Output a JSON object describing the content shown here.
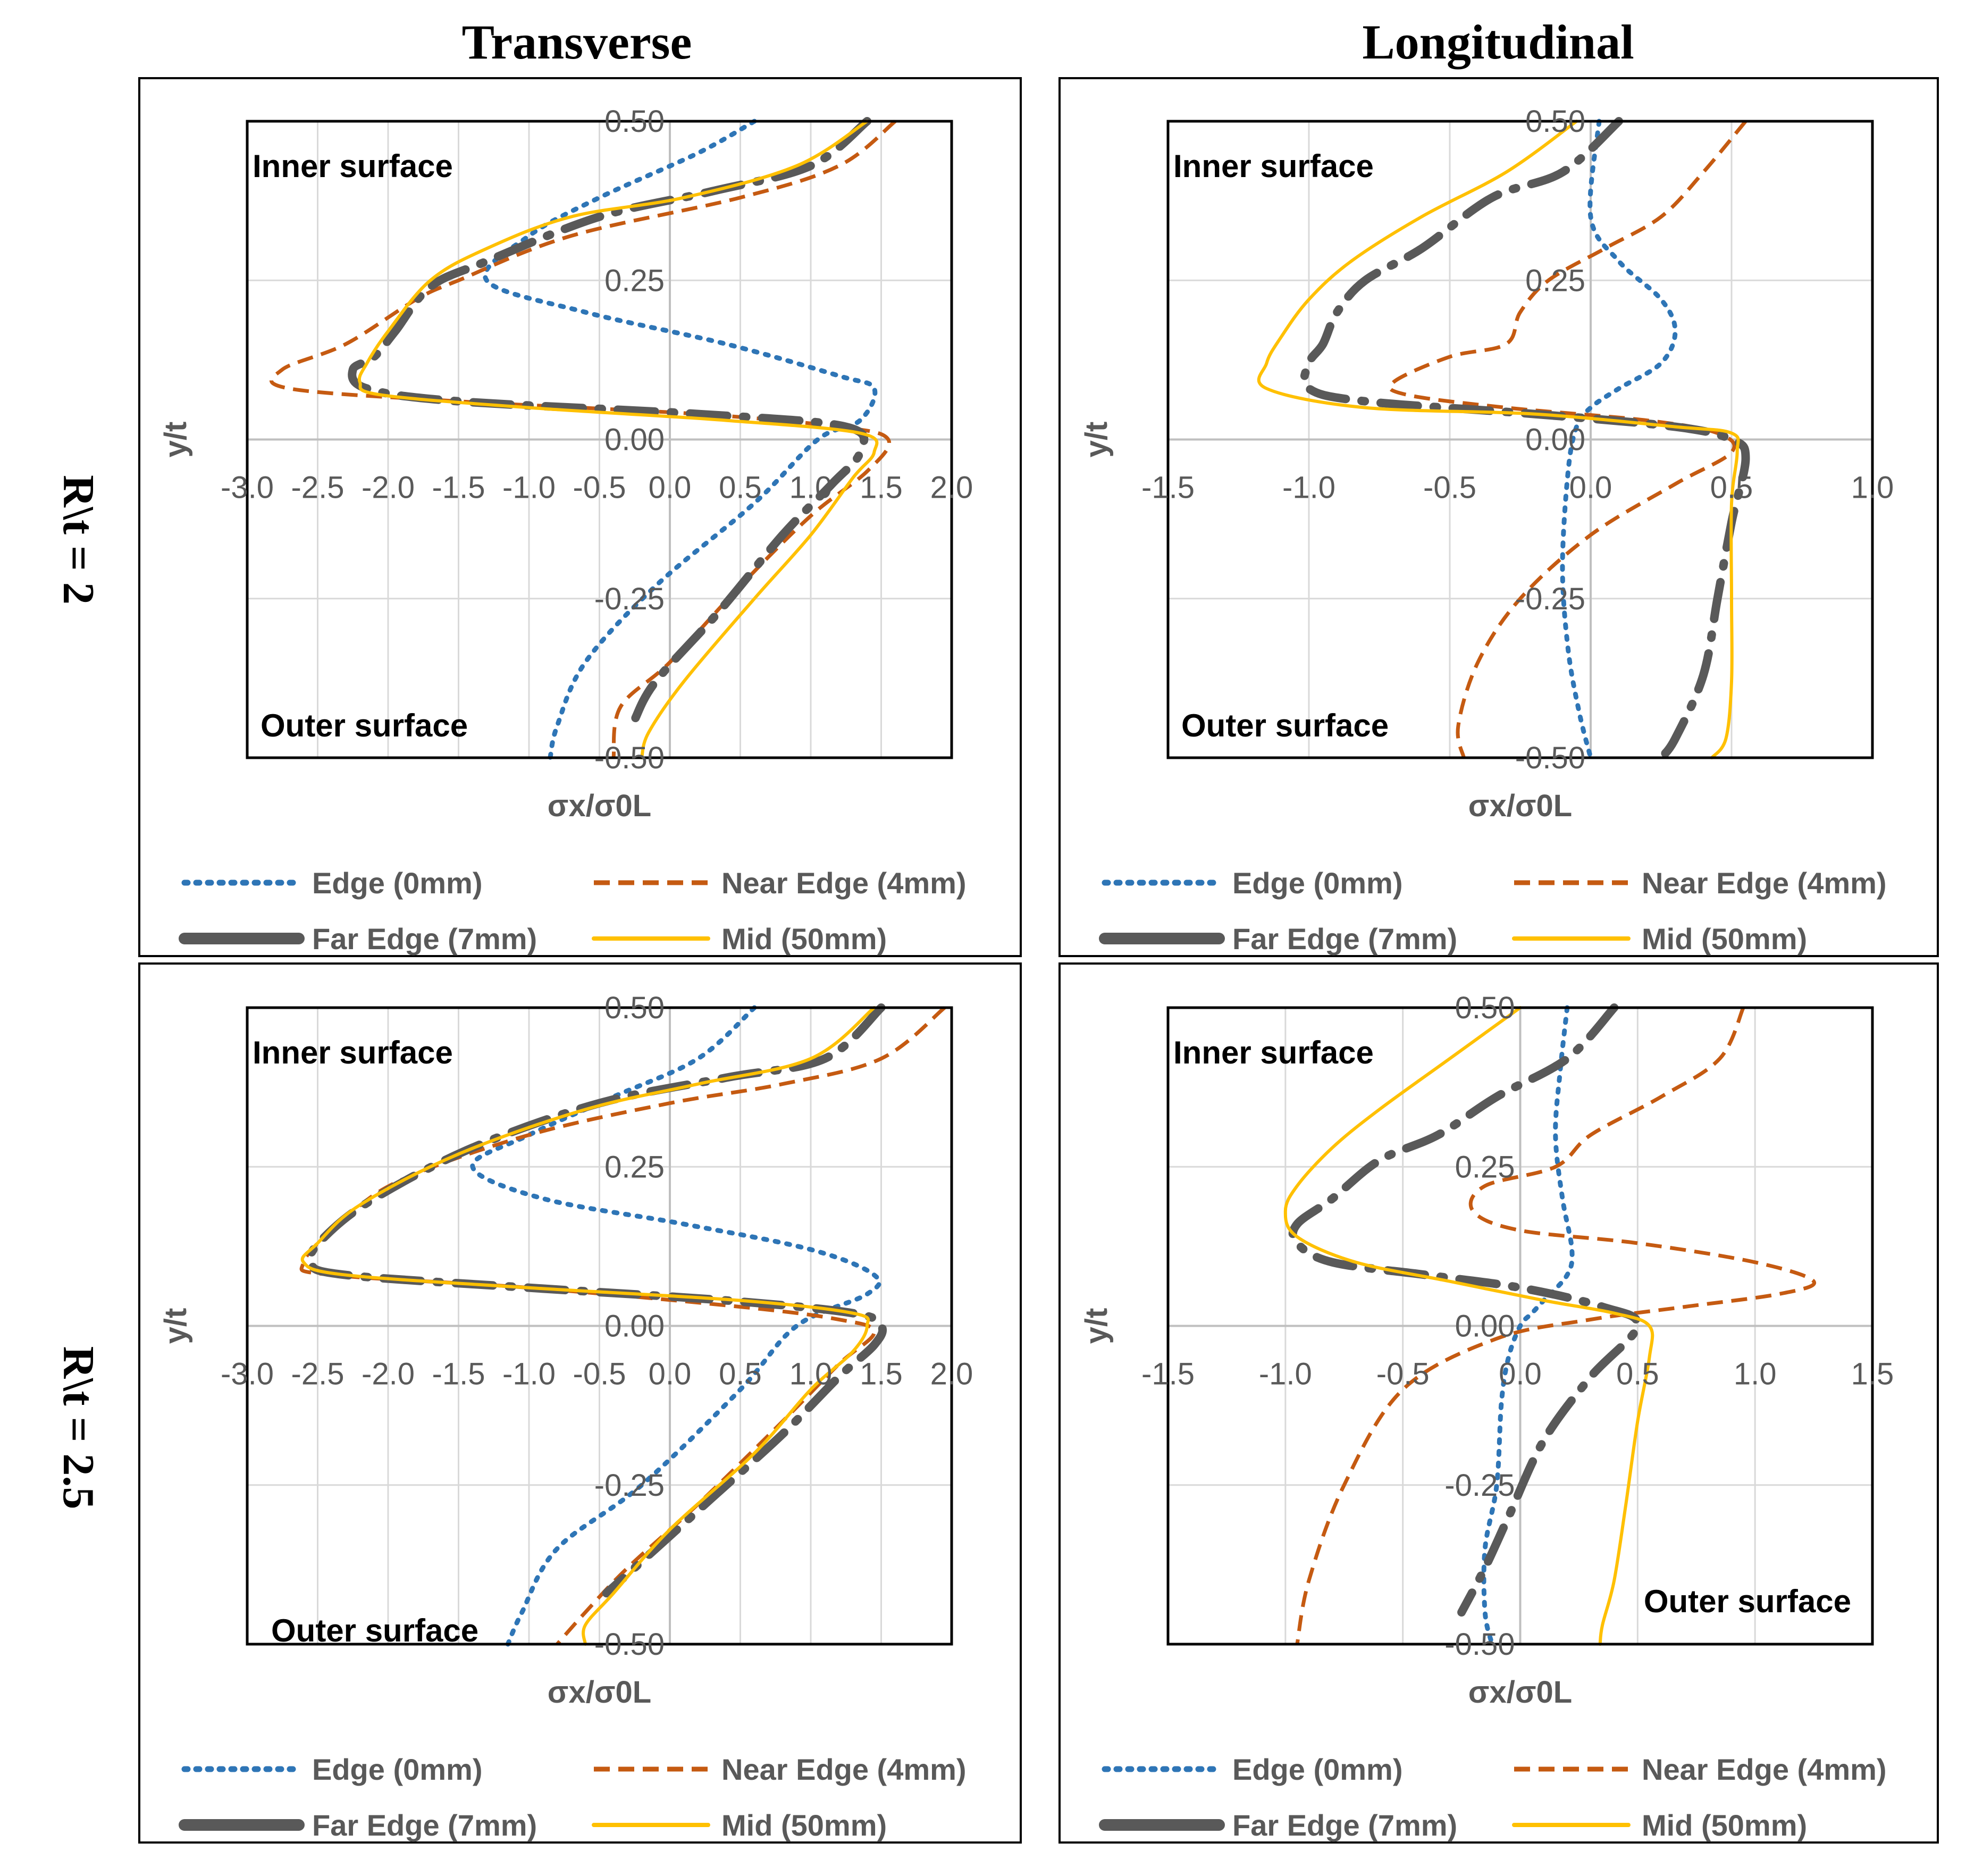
{
  "columns": [
    "Transverse",
    "Longitudinal"
  ],
  "rows": [
    "R\\t = 2",
    "R\\t = 2.5"
  ],
  "series_styles": [
    {
      "name": "Edge (0mm)",
      "color": "#2E75B6",
      "style": "dotted"
    },
    {
      "name": "Near Edge (4mm)",
      "color": "#C55A11",
      "style": "dashed"
    },
    {
      "name": "Far Edge (7mm)",
      "color": "#595959",
      "style": "long-dash-dot"
    },
    {
      "name": "Mid (50mm)",
      "color": "#FFC000",
      "style": "solid"
    }
  ],
  "chart_data": [
    {
      "type": "line",
      "panel": "Transverse, R\\t = 2",
      "xlabel": "σx/σ0L",
      "ylabel": "y/t",
      "xlim": [
        -3.0,
        2.0
      ],
      "ylim": [
        -0.5,
        0.5
      ],
      "xticks": [
        "-3.0",
        "-2.5",
        "-2.0",
        "-1.5",
        "-1.0",
        "-0.5",
        "0.0",
        "0.5",
        "1.0",
        "1.5",
        "2.0"
      ],
      "yticks": [
        "0.50",
        "0.25",
        "0.00",
        "-0.25",
        "-0.50"
      ],
      "annotations": {
        "inner": "Inner surface",
        "outer": "Outer surface"
      },
      "series": [
        {
          "name": "Edge (0mm)",
          "x": [
            0.6,
            0.2,
            -0.5,
            -1.0,
            -1.3,
            -0.6,
            0.4,
            1.2,
            1.45,
            1.35,
            1.05,
            0.6,
            -0.1,
            -0.6,
            -0.8,
            -0.85
          ],
          "y": [
            0.5,
            0.45,
            0.38,
            0.32,
            0.25,
            0.2,
            0.15,
            0.1,
            0.08,
            0.03,
            0.0,
            -0.1,
            -0.23,
            -0.35,
            -0.45,
            -0.5
          ]
        },
        {
          "name": "Near Edge (4mm)",
          "x": [
            1.6,
            1.2,
            0.5,
            -0.7,
            -1.5,
            -1.8,
            -2.3,
            -2.75,
            -2.7,
            -1.5,
            0.2,
            1.2,
            1.55,
            1.4,
            1.0,
            0.5,
            0.0,
            -0.35,
            -0.4
          ],
          "y": [
            0.5,
            0.43,
            0.38,
            0.32,
            0.25,
            0.22,
            0.15,
            0.11,
            0.08,
            0.06,
            0.04,
            0.02,
            0.0,
            -0.05,
            -0.12,
            -0.23,
            -0.35,
            -0.42,
            -0.5
          ]
        },
        {
          "name": "Far Edge (7mm)",
          "x": [
            1.4,
            1.0,
            0.3,
            -0.5,
            -1.3,
            -1.7,
            -1.95,
            -2.1,
            -2.25,
            -2.15,
            -1.5,
            0.2,
            1.25,
            1.35,
            1.15,
            0.8,
            0.35,
            -0.1,
            -0.25
          ],
          "y": [
            0.5,
            0.43,
            0.39,
            0.35,
            0.28,
            0.24,
            0.17,
            0.13,
            0.11,
            0.08,
            0.06,
            0.04,
            0.02,
            -0.02,
            -0.07,
            -0.15,
            -0.27,
            -0.38,
            -0.44
          ]
        },
        {
          "name": "Mid (50mm)",
          "x": [
            1.4,
            0.9,
            0.1,
            -0.7,
            -1.3,
            -1.7,
            -2.0,
            -2.15,
            -2.2,
            -2.05,
            -1.0,
            0.4,
            1.35,
            1.45,
            1.3,
            1.0,
            0.6,
            0.1,
            -0.15,
            -0.2
          ],
          "y": [
            0.5,
            0.43,
            0.38,
            0.35,
            0.3,
            0.25,
            0.17,
            0.12,
            0.09,
            0.07,
            0.05,
            0.03,
            0.01,
            -0.02,
            -0.06,
            -0.15,
            -0.25,
            -0.38,
            -0.46,
            -0.5
          ]
        }
      ]
    },
    {
      "type": "line",
      "panel": "Longitudinal, R\\t = 2",
      "xlabel": "σx/σ0L",
      "ylabel": "y/t",
      "xlim": [
        -1.5,
        1.0
      ],
      "ylim": [
        -0.5,
        0.5
      ],
      "xticks": [
        "-1.5",
        "-1.0",
        "-0.5",
        "0.0",
        "0.5",
        "1.0"
      ],
      "yticks": [
        "0.50",
        "0.25",
        "0.00",
        "-0.25",
        "-0.50"
      ],
      "annotations": {
        "inner": "Inner surface",
        "outer": "Outer surface"
      },
      "series": [
        {
          "name": "Edge (0mm)",
          "x": [
            0.03,
            0.0,
            0.1,
            0.25,
            0.3,
            0.25,
            0.1,
            0.0,
            -0.05,
            -0.08,
            -0.1,
            -0.08,
            -0.04,
            0.0
          ],
          "y": [
            0.5,
            0.35,
            0.28,
            0.22,
            0.17,
            0.12,
            0.08,
            0.05,
            0.02,
            -0.05,
            -0.2,
            -0.33,
            -0.43,
            -0.5
          ]
        },
        {
          "name": "Near Edge (4mm)",
          "x": [
            0.55,
            0.4,
            0.25,
            0.05,
            -0.15,
            -0.25,
            -0.3,
            -0.5,
            -0.7,
            -0.65,
            -0.3,
            0.2,
            0.45,
            0.5,
            0.3,
            0.0,
            -0.25,
            -0.4,
            -0.47,
            -0.45
          ],
          "y": [
            0.5,
            0.42,
            0.35,
            0.3,
            0.25,
            0.2,
            0.15,
            0.13,
            0.09,
            0.07,
            0.05,
            0.03,
            0.01,
            -0.02,
            -0.07,
            -0.15,
            -0.25,
            -0.35,
            -0.45,
            -0.5
          ]
        },
        {
          "name": "Far Edge (7mm)",
          "x": [
            0.1,
            -0.1,
            -0.35,
            -0.6,
            -0.8,
            -0.9,
            -0.95,
            -1.0,
            -1.0,
            -0.8,
            -0.2,
            0.3,
            0.5,
            0.55,
            0.5,
            0.45,
            0.4,
            0.3,
            0.25
          ],
          "y": [
            0.5,
            0.42,
            0.38,
            0.3,
            0.25,
            0.2,
            0.15,
            0.12,
            0.08,
            0.06,
            0.04,
            0.02,
            0.0,
            -0.03,
            -0.13,
            -0.25,
            -0.37,
            -0.47,
            -0.5
          ]
        },
        {
          "name": "Mid (50mm)",
          "x": [
            -0.05,
            -0.3,
            -0.6,
            -0.85,
            -1.0,
            -1.1,
            -1.15,
            -1.15,
            -0.8,
            -0.2,
            0.3,
            0.5,
            0.52,
            0.5,
            0.5,
            0.5,
            0.48,
            0.43
          ],
          "y": [
            0.5,
            0.42,
            0.35,
            0.28,
            0.22,
            0.16,
            0.12,
            0.08,
            0.05,
            0.04,
            0.02,
            0.01,
            -0.02,
            -0.1,
            -0.25,
            -0.38,
            -0.47,
            -0.5
          ]
        }
      ]
    },
    {
      "type": "line",
      "panel": "Transverse, R\\t = 2.5",
      "xlabel": "σx/σ0L",
      "ylabel": "y/t",
      "xlim": [
        -3.0,
        2.0
      ],
      "ylim": [
        -0.5,
        0.5
      ],
      "xticks": [
        "-3.0",
        "-2.5",
        "-2.0",
        "-1.5",
        "-1.0",
        "-0.5",
        "0.0",
        "0.5",
        "1.0",
        "1.5",
        "2.0"
      ],
      "yticks": [
        "0.50",
        "0.25",
        "0.00",
        "-0.25",
        "-0.50"
      ],
      "annotations": {
        "inner": "Inner surface",
        "outer": "Outer surface"
      },
      "series": [
        {
          "name": "Edge (0mm)",
          "x": [
            0.6,
            0.2,
            -0.4,
            -1.0,
            -1.4,
            -0.9,
            0.1,
            1.0,
            1.45,
            1.4,
            0.9,
            0.5,
            -0.2,
            -0.8,
            -1.05,
            -1.15
          ],
          "y": [
            0.5,
            0.42,
            0.36,
            0.3,
            0.25,
            0.2,
            0.16,
            0.12,
            0.08,
            0.05,
            0.0,
            -0.1,
            -0.25,
            -0.35,
            -0.45,
            -0.5
          ]
        },
        {
          "name": "Near Edge (4mm)",
          "x": [
            1.95,
            1.5,
            0.8,
            0.0,
            -1.0,
            -1.9,
            -2.3,
            -2.6,
            -2.4,
            -1.0,
            0.5,
            1.2,
            1.45,
            1.2,
            0.8,
            0.2,
            -0.3,
            -0.6,
            -0.8
          ],
          "y": [
            0.5,
            0.42,
            0.38,
            0.35,
            0.3,
            0.23,
            0.17,
            0.1,
            0.08,
            0.06,
            0.03,
            0.01,
            -0.01,
            -0.06,
            -0.15,
            -0.28,
            -0.38,
            -0.45,
            -0.5
          ]
        },
        {
          "name": "Far Edge (7mm)",
          "x": [
            1.5,
            1.1,
            0.4,
            -0.5,
            -1.4,
            -2.1,
            -2.45,
            -2.55,
            -2.3,
            -1.0,
            0.4,
            1.3,
            1.5,
            1.45,
            1.2,
            0.8,
            0.3,
            -0.2,
            -0.45
          ],
          "y": [
            0.5,
            0.42,
            0.39,
            0.35,
            0.28,
            0.2,
            0.14,
            0.1,
            0.08,
            0.06,
            0.04,
            0.02,
            0.0,
            -0.03,
            -0.08,
            -0.17,
            -0.27,
            -0.37,
            -0.42
          ]
        },
        {
          "name": "Mid (50mm)",
          "x": [
            1.45,
            1.0,
            0.2,
            -0.6,
            -1.5,
            -2.2,
            -2.5,
            -2.6,
            -2.3,
            -1.0,
            0.5,
            1.3,
            1.4,
            1.3,
            1.0,
            0.6,
            0.0,
            -0.4,
            -0.6,
            -0.6
          ],
          "y": [
            0.5,
            0.42,
            0.38,
            0.34,
            0.27,
            0.19,
            0.13,
            0.1,
            0.08,
            0.06,
            0.04,
            0.02,
            0.0,
            -0.04,
            -0.1,
            -0.2,
            -0.32,
            -0.42,
            -0.47,
            -0.5
          ]
        }
      ]
    },
    {
      "type": "line",
      "panel": "Longitudinal, R\\t = 2.5",
      "xlabel": "σx/σ0L",
      "ylabel": "y/t",
      "xlim": [
        -1.5,
        1.5
      ],
      "ylim": [
        -0.5,
        0.5
      ],
      "xticks": [
        "-1.5",
        "-1.0",
        "-0.5",
        "0.0",
        "0.5",
        "1.0",
        "1.5"
      ],
      "yticks": [
        "0.50",
        "0.25",
        "0.00",
        "-0.25",
        "-0.50"
      ],
      "annotations": {
        "inner": "Inner surface",
        "outer": "Outer surface"
      },
      "series": [
        {
          "name": "Edge (0mm)",
          "x": [
            0.2,
            0.17,
            0.15,
            0.18,
            0.22,
            0.2,
            0.1,
            0.05,
            0.0,
            -0.05,
            -0.08,
            -0.1,
            -0.15,
            -0.15,
            -0.12
          ],
          "y": [
            0.5,
            0.4,
            0.3,
            0.2,
            0.12,
            0.08,
            0.04,
            0.02,
            0.0,
            -0.05,
            -0.12,
            -0.25,
            -0.35,
            -0.45,
            -0.5
          ]
        },
        {
          "name": "Near Edge (4mm)",
          "x": [
            0.95,
            0.85,
            0.6,
            0.3,
            0.15,
            -0.15,
            -0.2,
            0.0,
            0.5,
            1.0,
            1.25,
            1.1,
            0.7,
            0.3,
            -0.1,
            -0.5,
            -0.75,
            -0.9,
            -0.95
          ],
          "y": [
            0.5,
            0.42,
            0.36,
            0.3,
            0.25,
            0.22,
            0.18,
            0.15,
            0.13,
            0.1,
            0.07,
            0.05,
            0.03,
            0.01,
            -0.02,
            -0.1,
            -0.25,
            -0.4,
            -0.5
          ]
        },
        {
          "name": "Far Edge (7mm)",
          "x": [
            0.4,
            0.2,
            -0.1,
            -0.35,
            -0.6,
            -0.8,
            -0.95,
            -0.95,
            -0.8,
            -0.4,
            0.0,
            0.35,
            0.5,
            0.3,
            0.1,
            -0.05,
            -0.15,
            -0.25
          ],
          "y": [
            0.5,
            0.42,
            0.36,
            0.3,
            0.26,
            0.2,
            0.16,
            0.13,
            0.1,
            0.08,
            0.06,
            0.03,
            0.0,
            -0.08,
            -0.18,
            -0.3,
            -0.38,
            -0.45
          ]
        },
        {
          "name": "Mid (50mm)",
          "x": [
            0.0,
            -0.3,
            -0.6,
            -0.8,
            -0.95,
            -1.0,
            -0.95,
            -0.7,
            -0.3,
            0.1,
            0.4,
            0.55,
            0.55,
            0.5,
            0.45,
            0.4,
            0.35,
            0.34
          ],
          "y": [
            0.5,
            0.42,
            0.34,
            0.28,
            0.22,
            0.18,
            0.14,
            0.1,
            0.07,
            0.04,
            0.02,
            0.0,
            -0.05,
            -0.15,
            -0.28,
            -0.4,
            -0.47,
            -0.5
          ]
        }
      ]
    }
  ]
}
